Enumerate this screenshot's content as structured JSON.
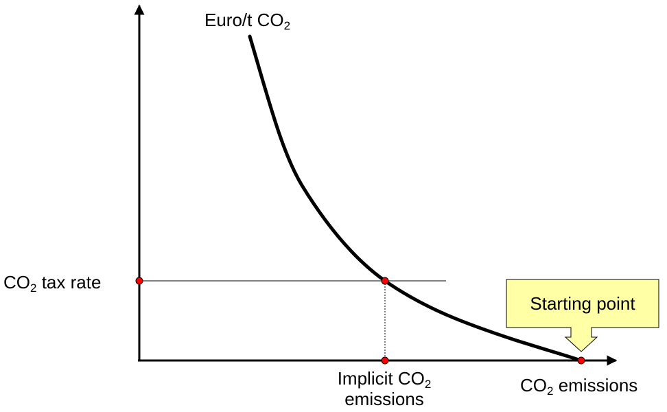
{
  "axis_y_label": {
    "main": "Euro/t CO",
    "sub": "2"
  },
  "axis_x_label": {
    "main": "CO",
    "sub": "2",
    "rest": " emissions"
  },
  "tax_rate_label": {
    "main": "CO",
    "sub": "2",
    "rest": " tax rate"
  },
  "implicit_label": {
    "line1_main": "Implicit CO",
    "line1_sub": "2",
    "line2": "emissions"
  },
  "callout": {
    "text": "Starting point",
    "fill": "#ffffa6"
  },
  "colors": {
    "point": "#ff0000",
    "curve": "#000000"
  }
}
